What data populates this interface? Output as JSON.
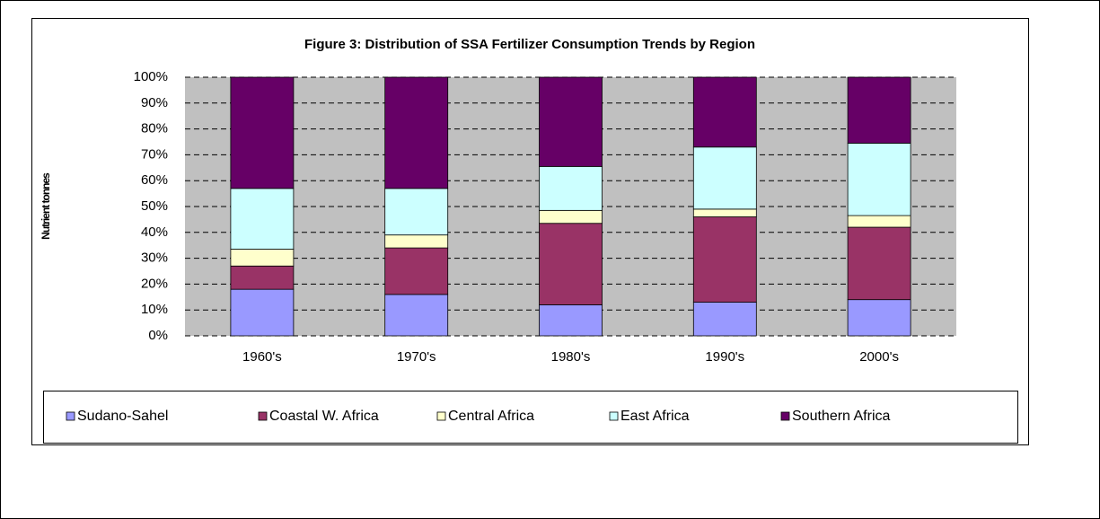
{
  "chart_data": {
    "type": "stacked_bar",
    "title": "Figure 3:  Distribution of SSA Fertilizer Consumption Trends by Region",
    "y_label": "Nutrient tonnes",
    "categories": [
      "1960's",
      "1970's",
      "1980's",
      "1990's",
      "2000's"
    ],
    "series": [
      {
        "name": "Sudano-Sahel",
        "color": "#9999ff",
        "values": [
          18,
          16,
          12,
          13,
          14
        ]
      },
      {
        "name": "Coastal W. Africa",
        "color": "#993366",
        "values": [
          9,
          18,
          31.5,
          33,
          28
        ]
      },
      {
        "name": "Central Africa",
        "color": "#ffffcc",
        "values": [
          6.5,
          5,
          5,
          3,
          4.5
        ]
      },
      {
        "name": "East Africa",
        "color": "#ccffff",
        "values": [
          23.5,
          18,
          17,
          24,
          28
        ]
      },
      {
        "name": "Southern Africa",
        "color": "#660066",
        "values": [
          43,
          43,
          34.5,
          27,
          25.5
        ]
      }
    ],
    "ylim": [
      0,
      100
    ],
    "yticks": [
      {
        "value": 0,
        "label": "0%"
      },
      {
        "value": 10,
        "label": "10%"
      },
      {
        "value": 20,
        "label": "20%"
      },
      {
        "value": 30,
        "label": "30%"
      },
      {
        "value": 40,
        "label": "40%"
      },
      {
        "value": 50,
        "label": "50%"
      },
      {
        "value": 60,
        "label": "60%"
      },
      {
        "value": 70,
        "label": "70%"
      },
      {
        "value": 80,
        "label": "80%"
      },
      {
        "value": 90,
        "label": "90%"
      },
      {
        "value": 100,
        "label": "100%"
      }
    ],
    "grid": true
  }
}
